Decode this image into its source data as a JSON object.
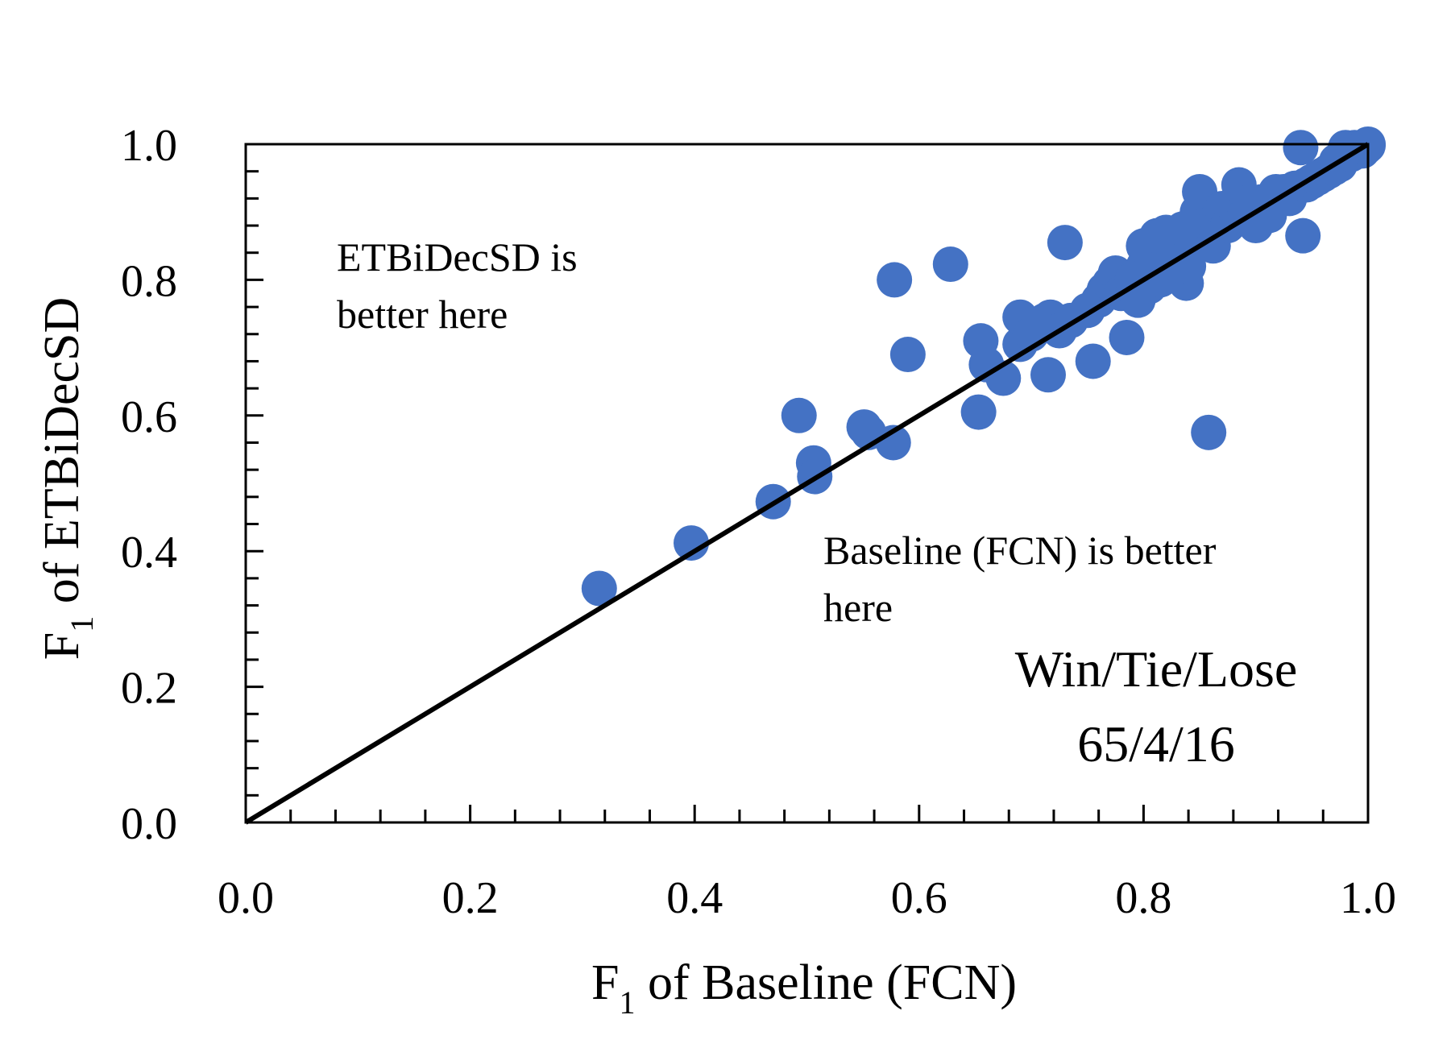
{
  "chart_data": {
    "type": "scatter",
    "xlabel": {
      "prefix": "F",
      "sub": "1",
      "rest": " of Baseline (FCN)"
    },
    "ylabel": {
      "prefix": "F",
      "sub": "1",
      "rest": " of ETBiDecSD"
    },
    "xlim": [
      0,
      1
    ],
    "ylim": [
      0,
      1
    ],
    "x_ticks": [
      "0.0",
      "0.2",
      "0.4",
      "0.6",
      "0.8",
      "1.0"
    ],
    "y_ticks": [
      "0.0",
      "0.2",
      "0.4",
      "0.6",
      "0.8",
      "1.0"
    ],
    "point_color": "#4472C4",
    "reference_line": {
      "from": [
        0,
        0
      ],
      "to": [
        1,
        1
      ],
      "color": "#000000"
    },
    "annotations": {
      "upper_line1": "ETBiDecSD is",
      "upper_line2": "better here",
      "lower_line1": "Baseline (FCN) is better",
      "lower_line2": "here",
      "summary_line1": "Win/Tie/Lose",
      "summary_line2": "65/4/16"
    },
    "points": [
      [
        0.315,
        0.345
      ],
      [
        0.397,
        0.412
      ],
      [
        0.47,
        0.473
      ],
      [
        0.493,
        0.6
      ],
      [
        0.506,
        0.53
      ],
      [
        0.507,
        0.51
      ],
      [
        0.551,
        0.583
      ],
      [
        0.555,
        0.575
      ],
      [
        0.577,
        0.56
      ],
      [
        0.578,
        0.8
      ],
      [
        0.59,
        0.69
      ],
      [
        0.628,
        0.823
      ],
      [
        0.653,
        0.605
      ],
      [
        0.655,
        0.71
      ],
      [
        0.66,
        0.675
      ],
      [
        0.675,
        0.655
      ],
      [
        0.69,
        0.705
      ],
      [
        0.69,
        0.745
      ],
      [
        0.7,
        0.72
      ],
      [
        0.712,
        0.74
      ],
      [
        0.715,
        0.66
      ],
      [
        0.717,
        0.745
      ],
      [
        0.725,
        0.725
      ],
      [
        0.73,
        0.855
      ],
      [
        0.735,
        0.74
      ],
      [
        0.75,
        0.755
      ],
      [
        0.755,
        0.68
      ],
      [
        0.76,
        0.77
      ],
      [
        0.765,
        0.785
      ],
      [
        0.77,
        0.795
      ],
      [
        0.775,
        0.81
      ],
      [
        0.78,
        0.78
      ],
      [
        0.785,
        0.715
      ],
      [
        0.79,
        0.8
      ],
      [
        0.795,
        0.77
      ],
      [
        0.8,
        0.82
      ],
      [
        0.8,
        0.85
      ],
      [
        0.805,
        0.79
      ],
      [
        0.81,
        0.84
      ],
      [
        0.812,
        0.865
      ],
      [
        0.815,
        0.8
      ],
      [
        0.82,
        0.87
      ],
      [
        0.825,
        0.825
      ],
      [
        0.83,
        0.85
      ],
      [
        0.835,
        0.875
      ],
      [
        0.838,
        0.795
      ],
      [
        0.84,
        0.82
      ],
      [
        0.845,
        0.86
      ],
      [
        0.848,
        0.9
      ],
      [
        0.85,
        0.93
      ],
      [
        0.855,
        0.88
      ],
      [
        0.858,
        0.575
      ],
      [
        0.862,
        0.85
      ],
      [
        0.865,
        0.89
      ],
      [
        0.87,
        0.905
      ],
      [
        0.875,
        0.88
      ],
      [
        0.88,
        0.91
      ],
      [
        0.885,
        0.94
      ],
      [
        0.89,
        0.895
      ],
      [
        0.895,
        0.915
      ],
      [
        0.9,
        0.88
      ],
      [
        0.905,
        0.915
      ],
      [
        0.912,
        0.895
      ],
      [
        0.918,
        0.93
      ],
      [
        0.925,
        0.93
      ],
      [
        0.93,
        0.92
      ],
      [
        0.935,
        0.935
      ],
      [
        0.94,
        0.995
      ],
      [
        0.942,
        0.865
      ],
      [
        0.945,
        0.94
      ],
      [
        0.95,
        0.945
      ],
      [
        0.955,
        0.95
      ],
      [
        0.96,
        0.955
      ],
      [
        0.965,
        0.96
      ],
      [
        0.97,
        0.965
      ],
      [
        0.972,
        0.975
      ],
      [
        0.975,
        0.97
      ],
      [
        0.98,
        0.995
      ],
      [
        0.985,
        0.985
      ],
      [
        0.988,
        0.995
      ],
      [
        0.992,
        0.99
      ],
      [
        0.995,
        0.99
      ],
      [
        0.998,
        0.995
      ],
      [
        1.0,
        0.998
      ],
      [
        1.0,
        1.0
      ]
    ]
  }
}
